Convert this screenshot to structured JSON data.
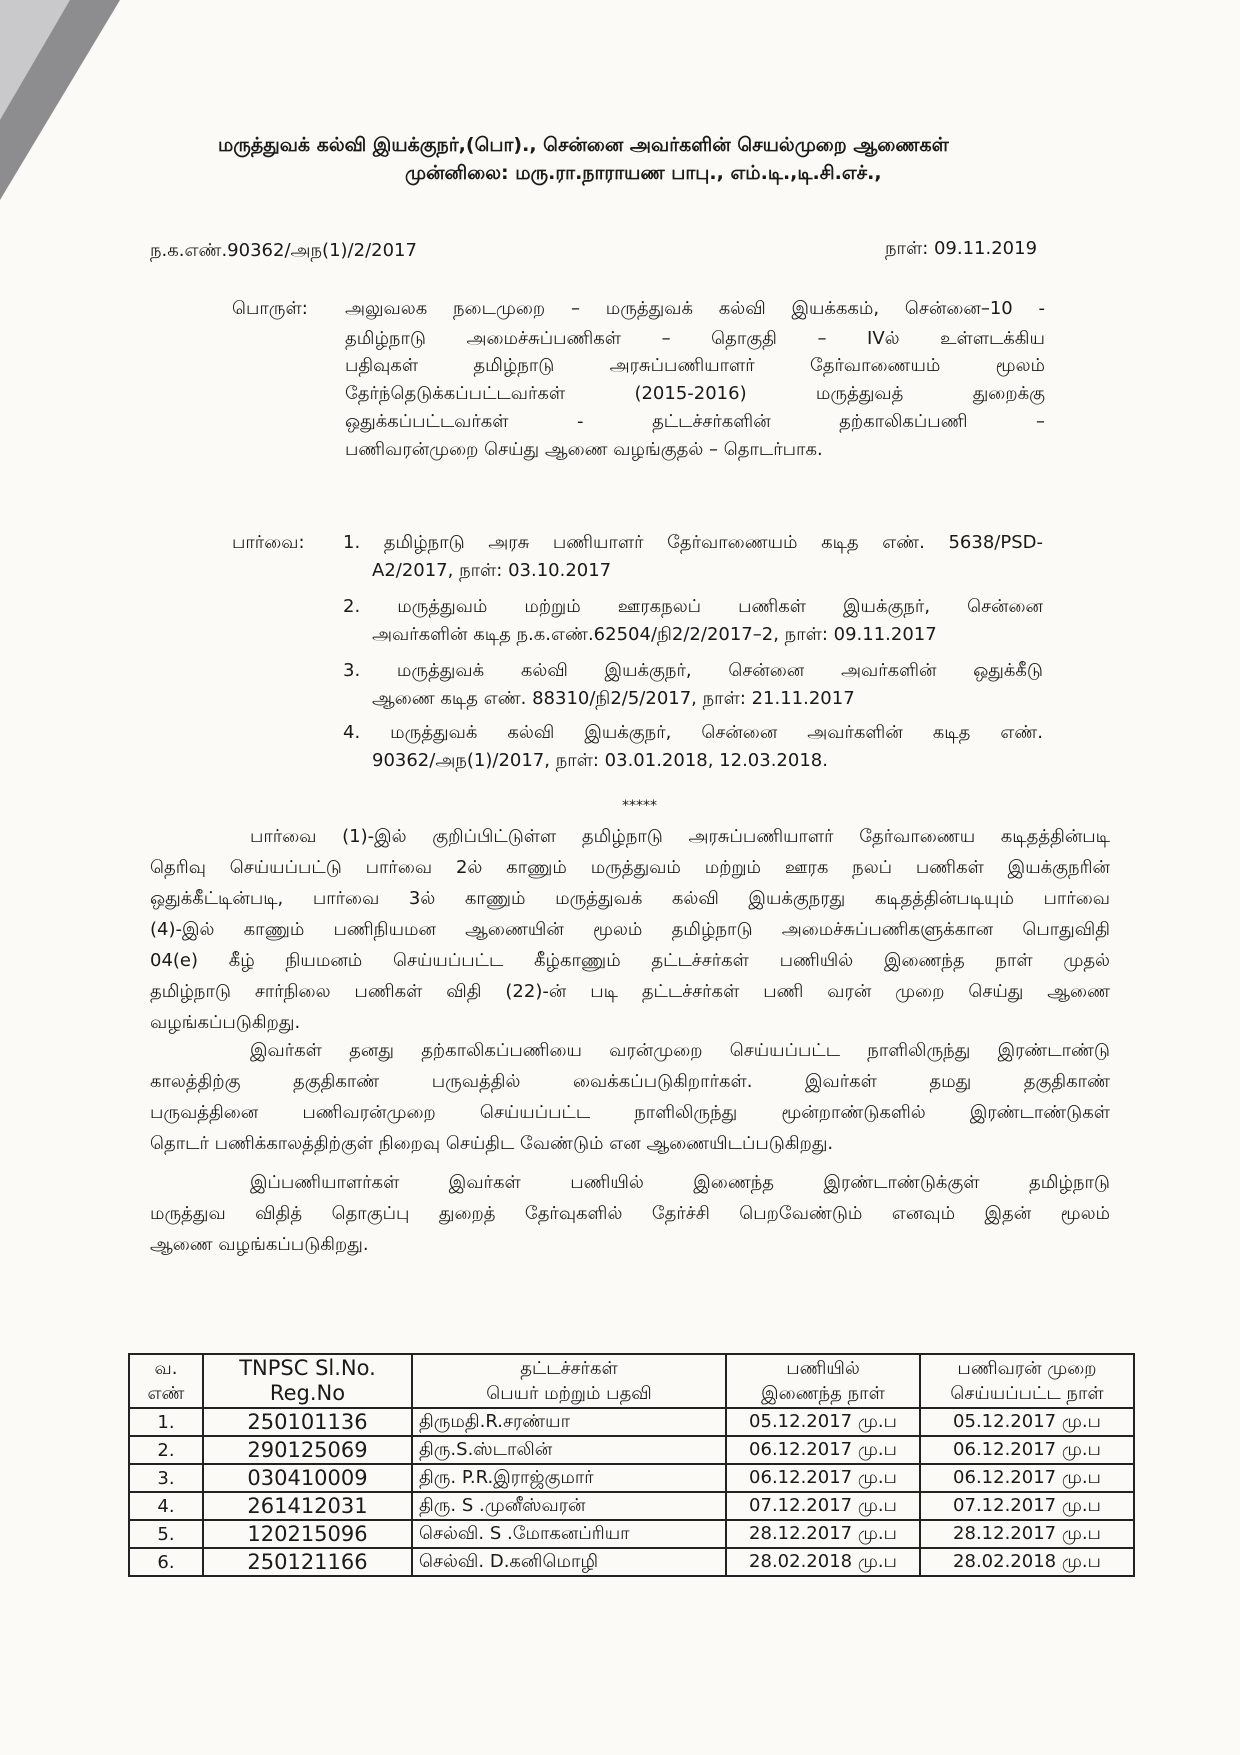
{
  "header": {
    "title": "மருத்துவக் கல்வி இயக்குநர்,(பொ)., சென்னை அவர்களின் செயல்முறை ஆணைகள்",
    "presence": "முன்னிலை: மரு.ரா.நாராயண பாபு., எம்.டி.,டி.சி.எச்.,"
  },
  "reference_no": "ந.க.எண்.90362/அந(1)/2/2017",
  "date": "நாள்: 09.11.2019",
  "subject": {
    "label": "பொருள்:",
    "lines": [
      "அலுவலக நடைமுறை – மருத்துவக் கல்வி இயக்ககம், சென்னை–10 -",
      "தமிழ்நாடு அமைச்சுப்பணிகள் – தொகுதி – IVல் உள்ளடக்கிய",
      "பதிவுகள் தமிழ்நாடு அரசுப்பணியாளர் தேர்வாணையம் மூலம்",
      "தேர்ந்தெடுக்கப்பட்டவர்கள் (2015-2016) மருத்துவத் துறைக்கு",
      "ஒதுக்கப்பட்டவர்கள் - தட்டச்சர்களின் தற்காலிகப்பணி –",
      "பணிவரன்முறை செய்து ஆணை வழங்குதல் – தொடர்பாக."
    ]
  },
  "references": {
    "label": "பார்வை:",
    "items": [
      [
        "1. தமிழ்நாடு அரசு பணியாளர் தேர்வாணையம் கடித எண். 5638/PSD-",
        "A2/2017, நாள்: 03.10.2017"
      ],
      [
        "2. மருத்துவம் மற்றும் ஊரகநலப் பணிகள் இயக்குநர், சென்னை",
        "அவர்களின் கடித ந.க.எண்.62504/நி2/2/2017–2, நாள்: 09.11.2017"
      ],
      [
        "3. மருத்துவக் கல்வி இயக்குநர், சென்னை அவர்களின் ஒதுக்கீடு",
        "ஆணை கடித எண். 88310/நி2/5/2017, நாள்: 21.11.2017"
      ],
      [
        "4. மருத்துவக் கல்வி இயக்குநர், சென்னை அவர்களின் கடித எண்.",
        "90362/அந(1)/2017, நாள்: 03.01.2018, 12.03.2018."
      ]
    ]
  },
  "separator": "*****",
  "paragraphs": [
    [
      "பார்வை (1)-இல் குறிப்பிட்டுள்ள தமிழ்நாடு அரசுப்பணியாளர் தேர்வாணைய கடிதத்தின்படி",
      "தெரிவு செய்யப்பட்டு பார்வை 2ல் காணும் மருத்துவம் மற்றும் ஊரக நலப் பணிகள் இயக்குநரின்",
      "ஒதுக்கீட்டின்படி, பார்வை 3ல் காணும் மருத்துவக் கல்வி இயக்குநரது கடிதத்தின்படியும் பார்வை",
      "(4)-இல் காணும் பணிநியமன ஆணையின் மூலம் தமிழ்நாடு அமைச்சுப்பணிகளுக்கான பொதுவிதி",
      "04(e) கீழ் நியமனம் செய்யப்பட்ட கீழ்காணும் தட்டச்சர்கள் பணியில் இணைந்த நாள் முதல்",
      "தமிழ்நாடு சார்நிலை பணிகள் விதி (22)-ன் படி தட்டச்சர்கள் பணி வரன் முறை செய்து ஆணை",
      "வழங்கப்படுகிறது."
    ],
    [
      "இவர்கள் தனது தற்காலிகப்பணியை வரன்முறை செய்யப்பட்ட நாளிலிருந்து இரண்டாண்டு",
      "காலத்திற்கு தகுதிகாண் பருவத்தில் வைக்கப்படுகிறார்கள். இவர்கள் தமது தகுதிகாண்",
      "பருவத்தினை பணிவரன்முறை செய்யப்பட்ட நாளிலிருந்து மூன்றாண்டுகளில் இரண்டாண்டுகள்",
      "தொடர் பணிக்காலத்திற்குள் நிறைவு செய்திட வேண்டும் என ஆணையிடப்படுகிறது."
    ],
    [
      "இப்பணியாளர்கள் இவர்கள் பணியில் இணைந்த இரண்டாண்டுக்குள் தமிழ்நாடு",
      "மருத்துவ விதித் தொகுப்பு துறைத் தேர்வுகளில் தேர்ச்சி பெறவேண்டும் எனவும் இதன் மூலம்",
      "ஆணை வழங்கப்படுகிறது."
    ]
  ],
  "table": {
    "headers": [
      [
        "வ.",
        "எண்"
      ],
      [
        "TNPSC Sl.No.",
        "Reg.No"
      ],
      [
        "தட்டச்சர்கள்",
        "பெயர் மற்றும் பதவி"
      ],
      [
        "பணியில்",
        "இணைந்த நாள்"
      ],
      [
        "பணிவரன் முறை",
        "செய்யப்பட்ட நாள்"
      ]
    ],
    "rows": [
      [
        "1.",
        "250101136",
        "திருமதி.R.சரண்யா",
        "05.12.2017 மு.ப",
        "05.12.2017 மு.ப"
      ],
      [
        "2.",
        "290125069",
        "திரு.S.ஸ்டாலின்",
        "06.12.2017 மு.ப",
        "06.12.2017 மு.ப"
      ],
      [
        "3.",
        "030410009",
        "திரு. P.R.இராஜ்குமார்",
        "06.12.2017 மு.ப",
        "06.12.2017 மு.ப"
      ],
      [
        "4.",
        "261412031",
        "திரு. S .முனீஸ்வரன்",
        "07.12.2017 மு.ப",
        "07.12.2017 மு.ப"
      ],
      [
        "5.",
        "120215096",
        "செல்வி. S .மோகனப்ரியா",
        "28.12.2017 மு.ப",
        "28.12.2017 மு.ப"
      ],
      [
        "6.",
        "250121166",
        "செல்வி. D.கனிமொழி",
        "28.02.2018 மு.ப",
        "28.02.2018 மு.ப"
      ]
    ]
  }
}
